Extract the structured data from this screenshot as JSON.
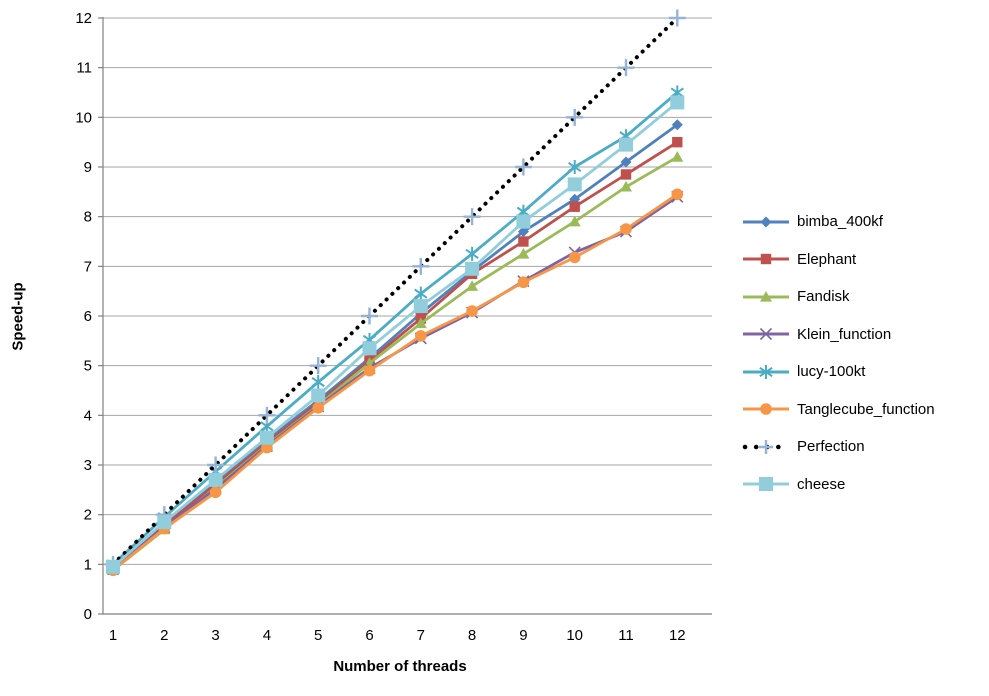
{
  "chart_data": {
    "type": "line",
    "title": "",
    "xlabel": "Number of threads",
    "ylabel": "Speed-up",
    "x": [
      1,
      2,
      3,
      4,
      5,
      6,
      7,
      8,
      9,
      10,
      11,
      12
    ],
    "xlim": [
      0.5,
      12.7
    ],
    "ylim": [
      0,
      12
    ],
    "yticks": [
      0,
      1,
      2,
      3,
      4,
      5,
      6,
      7,
      8,
      9,
      10,
      11,
      12
    ],
    "xticks": [
      1,
      2,
      3,
      4,
      5,
      6,
      7,
      8,
      9,
      10,
      11,
      12
    ],
    "grid": true,
    "legend_position": "right",
    "grid_color": "#A6A6A6",
    "axis_color": "#808080",
    "series": [
      {
        "name": "bimba_400kf",
        "color": "#4F81BD",
        "marker": "diamond",
        "line_style": "solid",
        "marker_size": 5.5,
        "values": [
          0.93,
          1.8,
          2.65,
          3.5,
          4.3,
          5.15,
          6.05,
          6.9,
          7.7,
          8.35,
          9.1,
          9.85
        ]
      },
      {
        "name": "Elephant",
        "color": "#C0504D",
        "marker": "square",
        "line_style": "solid",
        "marker_size": 5.2,
        "values": [
          0.92,
          1.78,
          2.6,
          3.45,
          4.25,
          5.1,
          5.95,
          6.85,
          7.5,
          8.2,
          8.85,
          9.5
        ]
      },
      {
        "name": "Fandisk",
        "color": "#9BBB59",
        "marker": "triangle",
        "line_style": "solid",
        "marker_size": 6,
        "values": [
          0.88,
          1.7,
          2.55,
          3.4,
          4.2,
          5.05,
          5.85,
          6.6,
          7.25,
          7.9,
          8.6,
          9.2
        ]
      },
      {
        "name": "Klein_function",
        "color": "#8064A2",
        "marker": "x",
        "line_style": "solid",
        "marker_size": 5.5,
        "values": [
          0.91,
          1.75,
          2.52,
          3.38,
          4.18,
          4.95,
          5.55,
          6.07,
          6.7,
          7.28,
          7.7,
          8.4
        ]
      },
      {
        "name": "lucy-100kt",
        "color": "#4BACC6",
        "marker": "asterisk",
        "line_style": "solid",
        "marker_size": 7,
        "values": [
          1.0,
          1.95,
          2.87,
          3.78,
          4.67,
          5.52,
          6.45,
          7.25,
          8.1,
          9.0,
          9.62,
          10.5
        ]
      },
      {
        "name": "Tanglecube_function",
        "color": "#F79646",
        "marker": "circle",
        "line_style": "solid",
        "marker_size": 5.8,
        "values": [
          0.88,
          1.72,
          2.45,
          3.35,
          4.15,
          4.9,
          5.6,
          6.1,
          6.68,
          7.18,
          7.75,
          8.45
        ]
      },
      {
        "name": "Perfection",
        "color": "#000000",
        "marker": "plus",
        "marker_color": "#95B3D7",
        "line_style": "dotted",
        "marker_size": 8.5,
        "values": [
          1,
          2,
          3,
          4,
          5,
          6,
          7,
          8,
          9,
          10,
          11,
          12
        ]
      },
      {
        "name": "cheese",
        "color": "#92CDDC",
        "marker": "square",
        "line_style": "solid",
        "marker_size": 7,
        "values": [
          0.95,
          1.85,
          2.7,
          3.55,
          4.4,
          5.35,
          6.2,
          6.95,
          7.9,
          8.65,
          9.45,
          10.3
        ]
      }
    ]
  }
}
